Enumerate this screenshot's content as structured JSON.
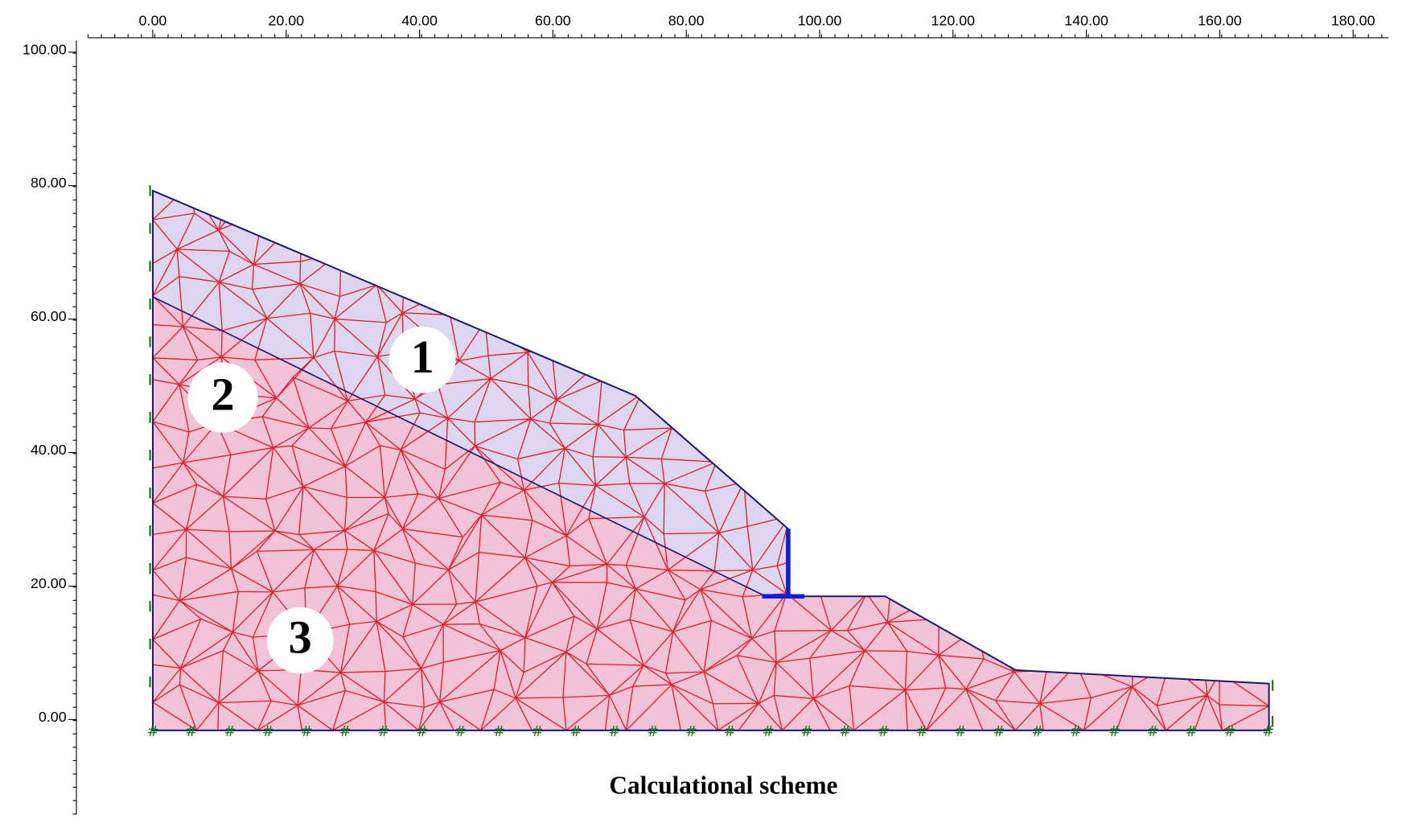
{
  "axes": {
    "x": {
      "ticks": [
        {
          "value": 0,
          "label": "0.00"
        },
        {
          "value": 20,
          "label": "20.00"
        },
        {
          "value": 40,
          "label": "40.00"
        },
        {
          "value": 60,
          "label": "60.00"
        },
        {
          "value": 80,
          "label": "80.00"
        },
        {
          "value": 100,
          "label": "100.00"
        },
        {
          "value": 120,
          "label": "120.00"
        },
        {
          "value": 140,
          "label": "140.00"
        },
        {
          "value": 160,
          "label": "160.00"
        },
        {
          "value": 180,
          "label": "180.00"
        }
      ]
    },
    "y": {
      "ticks": [
        {
          "value": 0,
          "label": "0.00"
        },
        {
          "value": 20,
          "label": "20.00"
        },
        {
          "value": 40,
          "label": "40.00"
        },
        {
          "value": 60,
          "label": "60.00"
        },
        {
          "value": 80,
          "label": "80.00"
        },
        {
          "value": 100,
          "label": "100.00"
        }
      ]
    }
  },
  "regions": [
    {
      "label": "1"
    },
    {
      "label": "2"
    },
    {
      "label": "3"
    }
  ],
  "caption": "Calculational scheme"
}
